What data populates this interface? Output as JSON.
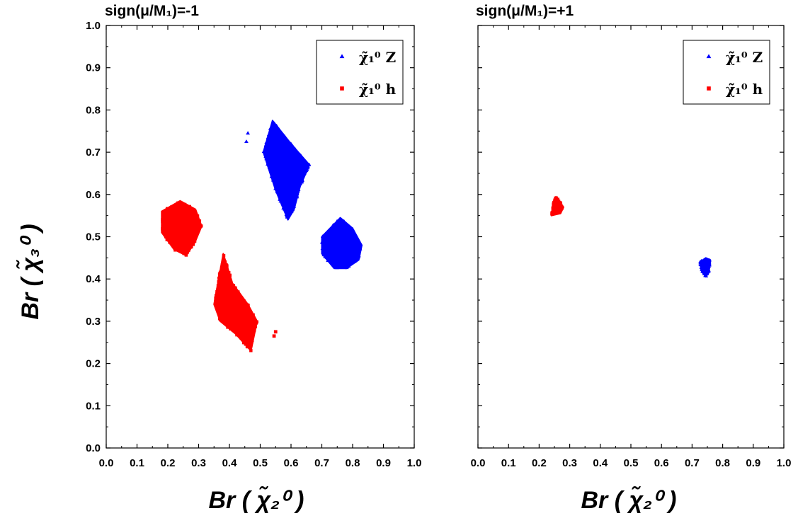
{
  "chart_data": [
    {
      "type": "scatter",
      "title": "sign(μ/M₁)=-1",
      "xlabel": "Br ( χ̃₂⁰ )",
      "ylabel": "Br ( χ̃₃⁰ )",
      "xlim": [
        0.0,
        1.0
      ],
      "ylim": [
        0.0,
        1.0
      ],
      "x_ticks": [
        "0.0",
        "0.1",
        "0.2",
        "0.3",
        "0.4",
        "0.5",
        "0.6",
        "0.7",
        "0.8",
        "0.9",
        "1.0"
      ],
      "y_ticks": [
        "0.0",
        "0.1",
        "0.2",
        "0.3",
        "0.4",
        "0.5",
        "0.6",
        "0.7",
        "0.8",
        "0.9",
        "1.0"
      ],
      "grid": false,
      "legend_position": "top-right",
      "series": [
        {
          "name": "χ̃₁⁰ Z",
          "marker": "triangle",
          "color": "#0000ff",
          "clusters": [
            {
              "polygon": [
                [
                  0.54,
                  0.775
                ],
                [
                  0.6,
                  0.72
                ],
                [
                  0.66,
                  0.67
                ],
                [
                  0.63,
                  0.62
                ],
                [
                  0.61,
                  0.565
                ],
                [
                  0.59,
                  0.54
                ],
                [
                  0.55,
                  0.61
                ],
                [
                  0.51,
                  0.7
                ]
              ]
            },
            {
              "polygon": [
                [
                  0.76,
                  0.545
                ],
                [
                  0.8,
                  0.52
                ],
                [
                  0.83,
                  0.48
                ],
                [
                  0.82,
                  0.445
                ],
                [
                  0.78,
                  0.425
                ],
                [
                  0.74,
                  0.425
                ],
                [
                  0.7,
                  0.46
                ],
                [
                  0.7,
                  0.5
                ]
              ]
            }
          ],
          "outliers": [
            [
              0.46,
              0.745
            ],
            [
              0.455,
              0.725
            ]
          ]
        },
        {
          "name": "χ̃₁⁰ h",
          "marker": "square",
          "color": "#ff0000",
          "clusters": [
            {
              "polygon": [
                [
                  0.24,
                  0.585
                ],
                [
                  0.29,
                  0.565
                ],
                [
                  0.31,
                  0.525
                ],
                [
                  0.29,
                  0.49
                ],
                [
                  0.26,
                  0.455
                ],
                [
                  0.22,
                  0.47
                ],
                [
                  0.18,
                  0.51
                ],
                [
                  0.18,
                  0.56
                ]
              ]
            },
            {
              "polygon": [
                [
                  0.38,
                  0.46
                ],
                [
                  0.41,
                  0.39
                ],
                [
                  0.46,
                  0.34
                ],
                [
                  0.49,
                  0.3
                ],
                [
                  0.47,
                  0.23
                ],
                [
                  0.42,
                  0.27
                ],
                [
                  0.37,
                  0.3
                ],
                [
                  0.35,
                  0.34
                ],
                [
                  0.37,
                  0.42
                ]
              ]
            }
          ],
          "outliers": [
            [
              0.55,
              0.275
            ],
            [
              0.545,
              0.265
            ]
          ]
        }
      ]
    },
    {
      "type": "scatter",
      "title": "sign(μ/M₁)=+1",
      "xlabel": "Br ( χ̃₂⁰ )",
      "ylabel": "",
      "xlim": [
        0.0,
        1.0
      ],
      "ylim": [
        0.0,
        1.0
      ],
      "x_ticks": [
        "0.0",
        "0.1",
        "0.2",
        "0.3",
        "0.4",
        "0.5",
        "0.6",
        "0.7",
        "0.8",
        "0.9",
        "1.0"
      ],
      "y_ticks": [],
      "grid": false,
      "legend_position": "top-right",
      "series": [
        {
          "name": "χ̃₁⁰ Z",
          "marker": "triangle",
          "color": "#0000ff",
          "clusters": [
            {
              "polygon": [
                [
                  0.745,
                  0.45
                ],
                [
                  0.76,
                  0.445
                ],
                [
                  0.755,
                  0.415
                ],
                [
                  0.745,
                  0.405
                ],
                [
                  0.73,
                  0.42
                ],
                [
                  0.725,
                  0.44
                ]
              ]
            }
          ],
          "outliers": []
        },
        {
          "name": "χ̃₁⁰ h",
          "marker": "square",
          "color": "#ff0000",
          "clusters": [
            {
              "polygon": [
                [
                  0.255,
                  0.595
                ],
                [
                  0.28,
                  0.57
                ],
                [
                  0.27,
                  0.555
                ],
                [
                  0.24,
                  0.55
                ],
                [
                  0.245,
                  0.58
                ]
              ]
            }
          ],
          "outliers": []
        }
      ]
    }
  ]
}
